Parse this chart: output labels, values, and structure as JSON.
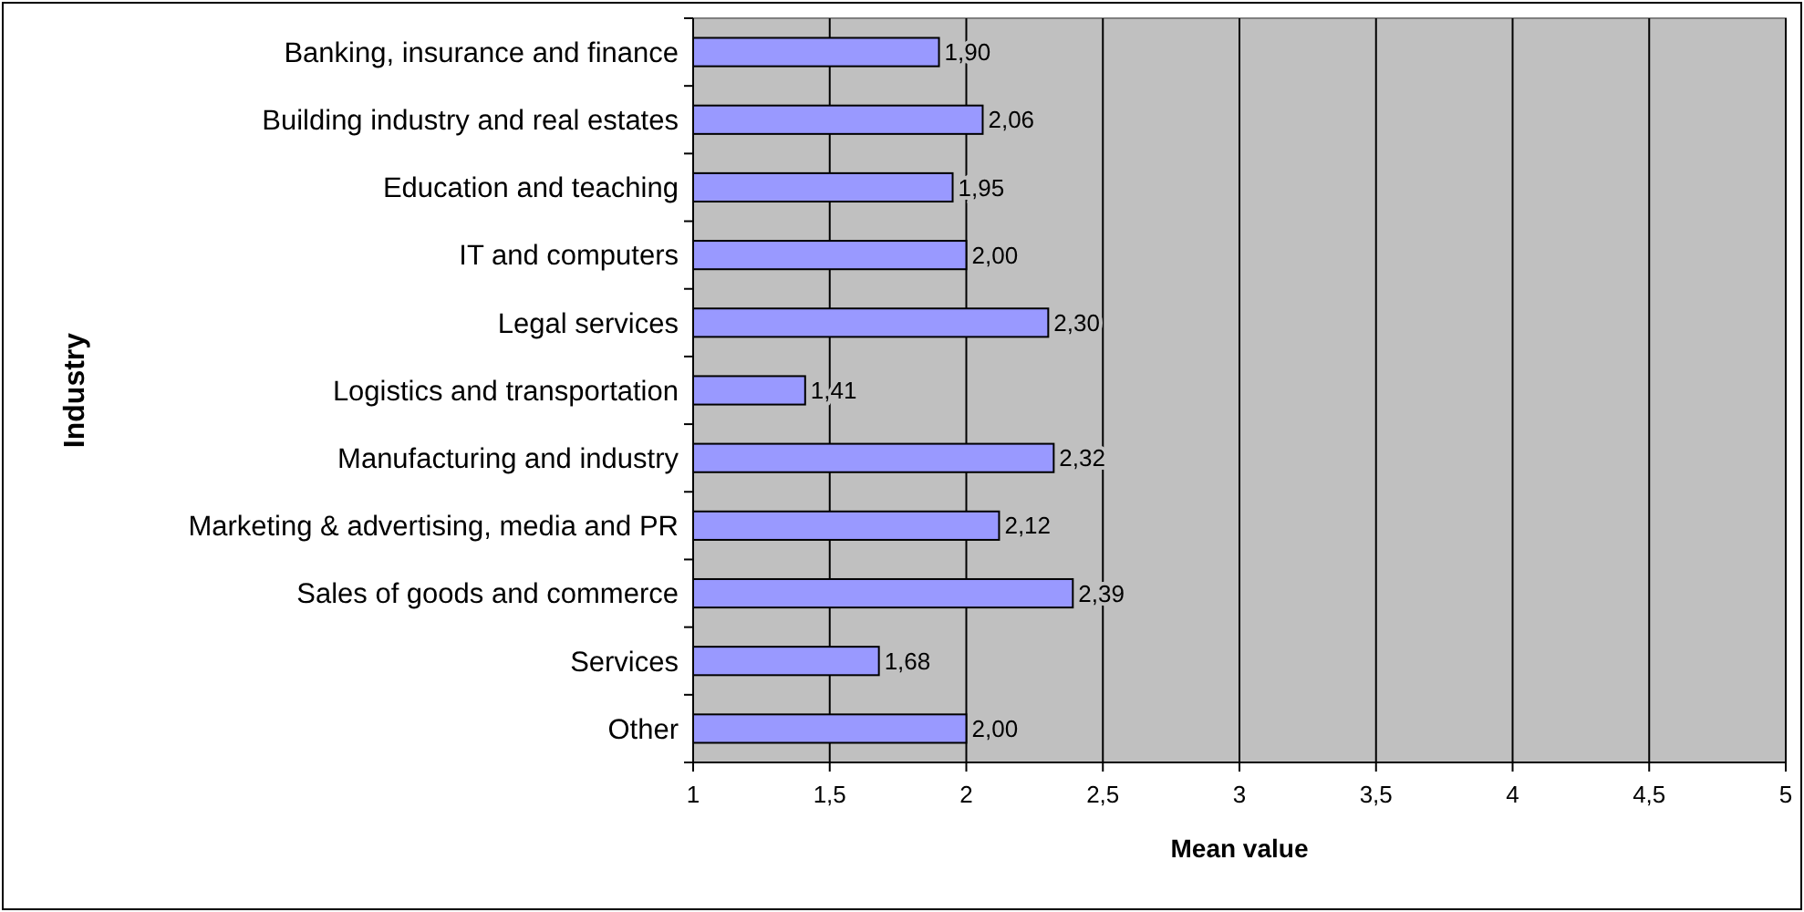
{
  "chart_data": {
    "type": "bar",
    "orientation": "horizontal",
    "xlabel": "Mean value",
    "ylabel": "Industry",
    "categories": [
      "Banking, insurance and finance",
      "Building industry and real estates",
      "Education and teaching",
      "IT and computers",
      "Legal services",
      "Logistics and transportation",
      "Manufacturing and industry",
      "Marketing & advertising, media and PR",
      "Sales of goods and commerce",
      "Services",
      "Other"
    ],
    "values": [
      1.9,
      2.06,
      1.95,
      2.0,
      2.3,
      1.41,
      2.32,
      2.12,
      2.39,
      1.68,
      2.0
    ],
    "value_labels": [
      "1,90",
      "2,06",
      "1,95",
      "2,00",
      "2,30",
      "1,41",
      "2,32",
      "2,12",
      "2,39",
      "1,68",
      "2,00"
    ],
    "color": "#9999ff",
    "xlim": [
      1,
      5
    ],
    "xticks": [
      1,
      {
        "value": 1.5,
        "label": "1,5"
      },
      2,
      {
        "value": 2.5,
        "label": "2,5"
      },
      3,
      {
        "value": 3.5,
        "label": "3,5"
      },
      4,
      {
        "value": 4.5,
        "label": "4,5"
      },
      5
    ],
    "grid": "x"
  }
}
